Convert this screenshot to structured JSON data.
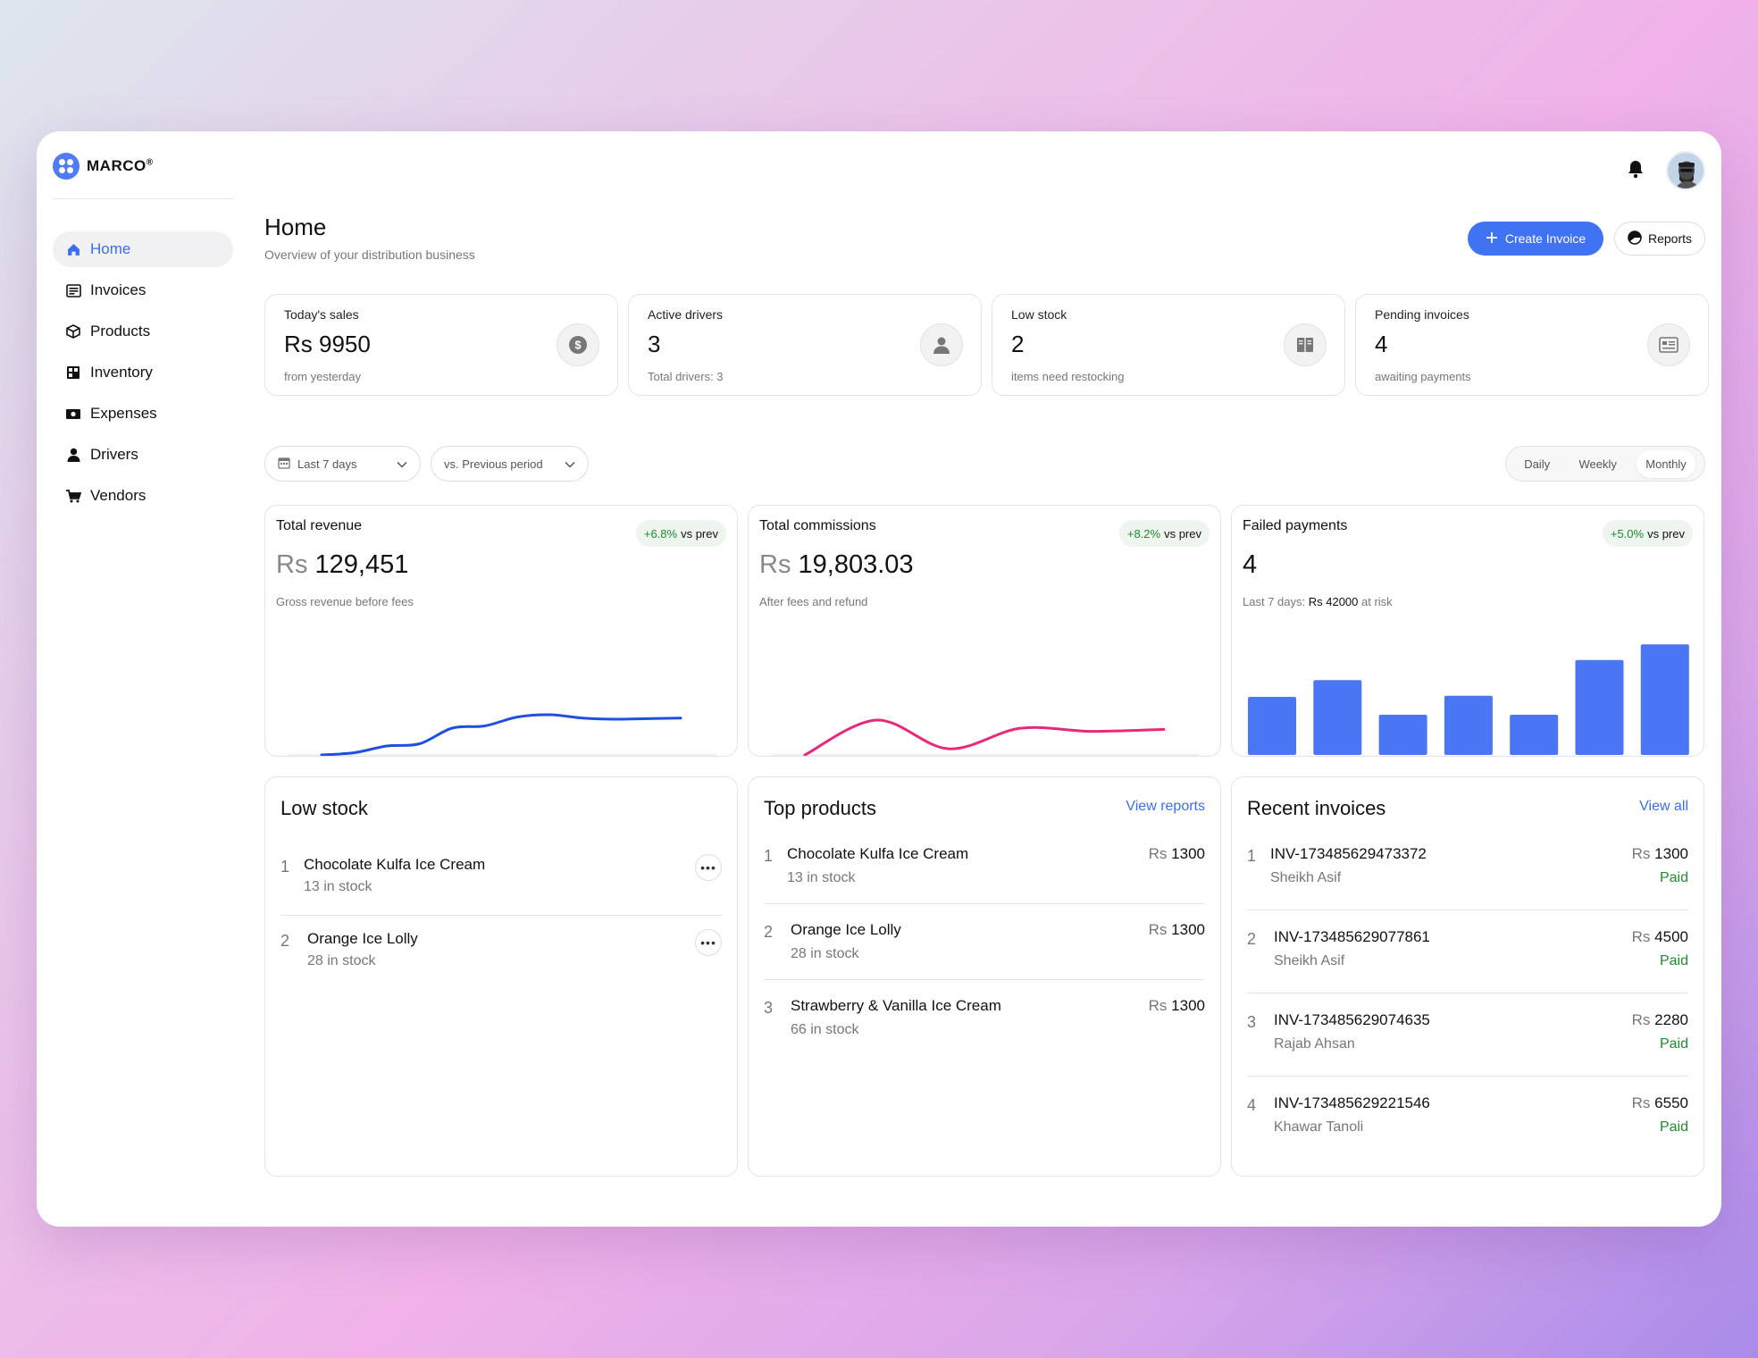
{
  "brand": {
    "name": "MARCO",
    "mark": "®"
  },
  "nav": [
    {
      "label": "Home",
      "icon": "home-icon",
      "active": true
    },
    {
      "label": "Invoices",
      "icon": "invoice-icon"
    },
    {
      "label": "Products",
      "icon": "box-icon"
    },
    {
      "label": "Inventory",
      "icon": "inventory-icon"
    },
    {
      "label": "Expenses",
      "icon": "money-icon"
    },
    {
      "label": "Drivers",
      "icon": "user-icon"
    },
    {
      "label": "Vendors",
      "icon": "cart-icon"
    }
  ],
  "header": {
    "title": "Home",
    "subtitle": "Overview of your distribution business",
    "create_label": "Create Invoice",
    "reports_label": "Reports",
    "accent": "#3f73f3"
  },
  "stats": [
    {
      "label": "Today's sales",
      "value": "Rs 9950",
      "sub": "from yesterday",
      "icon": "dollar-icon"
    },
    {
      "label": "Active drivers",
      "value": "3",
      "sub": "Total drivers: 3",
      "icon": "driver-icon"
    },
    {
      "label": "Low stock",
      "value": "2",
      "sub": "items need restocking",
      "icon": "book-icon"
    },
    {
      "label": "Pending invoices",
      "value": "4",
      "sub": "awaiting payments",
      "icon": "bill-icon"
    }
  ],
  "filters": {
    "range": "Last 7 days",
    "compare": "vs. Previous period",
    "periods": [
      "Daily",
      "Weekly",
      "Monthly"
    ],
    "selected_period": "Monthly"
  },
  "cards": {
    "revenue": {
      "label": "Total revenue",
      "currency": "Rs",
      "amount": "129,451",
      "sub": "Gross revenue before fees",
      "badge_pct": "+6.8%",
      "badge_suffix": "vs prev"
    },
    "commissions": {
      "label": "Total commissions",
      "currency": "Rs",
      "amount": "19,803.03",
      "sub": "After fees and refund",
      "badge_pct": "+8.2%",
      "badge_suffix": "vs prev"
    },
    "failed": {
      "label": "Failed payments",
      "value": "4",
      "sub_prefix": "Last 7 days:",
      "sub_amount": "Rs 42000",
      "sub_suffix": "at risk",
      "badge_pct": "+5.0%",
      "badge_suffix": "vs prev"
    }
  },
  "chart_data": [
    {
      "type": "line",
      "name": "Total revenue",
      "color": "#1f4fe0",
      "values": [
        0,
        2,
        8,
        10,
        24,
        26,
        34,
        36,
        33,
        32,
        32.5,
        33
      ]
    },
    {
      "type": "line",
      "name": "Total commissions",
      "color": "#e8287a",
      "values": [
        0,
        34,
        6,
        26,
        23,
        25
      ]
    },
    {
      "type": "bar",
      "name": "Failed payments",
      "color": "#4a76f5",
      "values": [
        52,
        67,
        36,
        53,
        36,
        85,
        99
      ]
    }
  ],
  "low_stock": {
    "title": "Low stock",
    "items": [
      {
        "num": "1",
        "name": "Chocolate Kulfa  Ice Cream",
        "meta": "13 in stock"
      },
      {
        "num": "2",
        "name": "Orange Ice Lolly",
        "meta": "28 in stock"
      }
    ]
  },
  "top_products": {
    "title": "Top products",
    "link": "View reports",
    "items": [
      {
        "num": "1",
        "name": "Chocolate Kulfa  Ice Cream",
        "meta": "13 in stock",
        "currency": "Rs",
        "amount": "1300"
      },
      {
        "num": "2",
        "name": "Orange Ice Lolly",
        "meta": "28 in stock",
        "currency": "Rs",
        "amount": "1300"
      },
      {
        "num": "3",
        "name": "Strawberry & Vanilla  Ice Cream",
        "meta": "66 in stock",
        "currency": "Rs",
        "amount": "1300"
      }
    ]
  },
  "recent_invoices": {
    "title": "Recent invoices",
    "link": "View all",
    "items": [
      {
        "num": "1",
        "id": "INV-173485629473372",
        "customer": "Sheikh Asif",
        "currency": "Rs",
        "amount": "1300",
        "status": "Paid"
      },
      {
        "num": "2",
        "id": "INV-173485629077861",
        "customer": "Sheikh Asif",
        "currency": "Rs",
        "amount": "4500",
        "status": "Paid"
      },
      {
        "num": "3",
        "id": "INV-173485629074635",
        "customer": "Rajab Ahsan",
        "currency": "Rs",
        "amount": "2280",
        "status": "Paid"
      },
      {
        "num": "4",
        "id": "INV-173485629221546",
        "customer": "Khawar Tanoli",
        "currency": "Rs",
        "amount": "6550",
        "status": "Paid"
      }
    ]
  }
}
